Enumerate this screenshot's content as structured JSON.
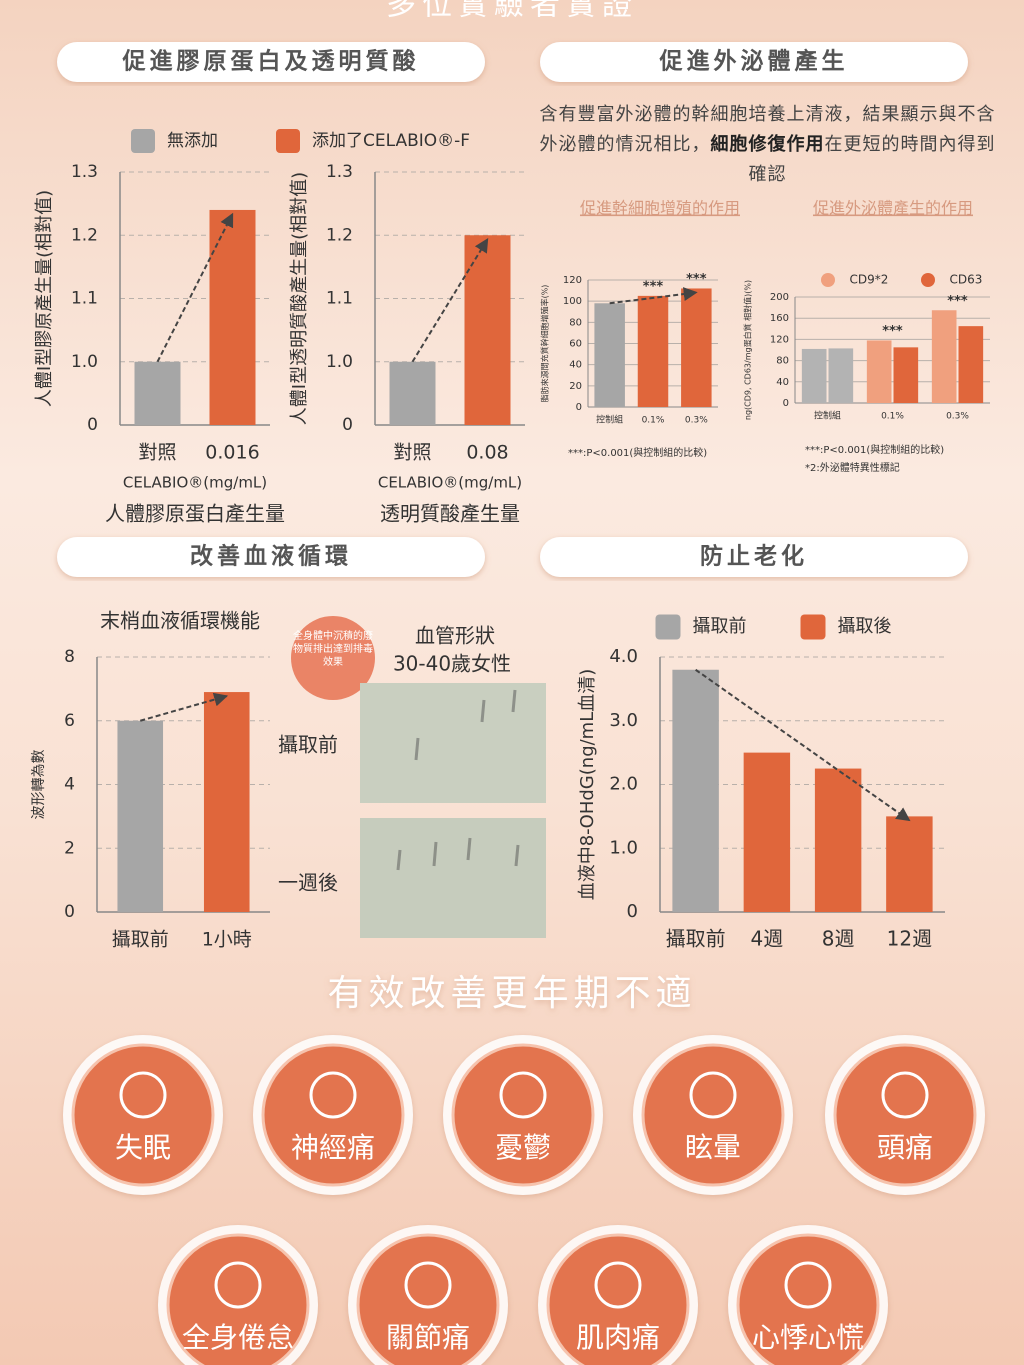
{
  "page": {
    "title": "多位實驗者實證",
    "sections": [
      "促進膠原蛋白及透明質酸",
      "促進外泌體產生",
      "改善血液循環",
      "防止老化"
    ],
    "exosome_text": {
      "before": "含有豐富外泌體的幹細胞培養上清液，結果顯示與不含外泌體的情況相比，",
      "bold": "細胞修復作用",
      "after": "在更短的時間內得到確認"
    },
    "badge": "全身體中沉積的廢物質排出達到排毒效果",
    "vessel": {
      "title": "血管形狀",
      "subtitle": "30-40歲女性",
      "before": "攝取前",
      "after": "一週後"
    },
    "menopause": {
      "title": "有效改善更年期不適",
      "symptoms": [
        "失眠",
        "神經痛",
        "憂鬱",
        "眩暈",
        "頭痛",
        "全身倦怠",
        "關節痛",
        "肌肉痛",
        "心悸心慌"
      ]
    }
  },
  "chart_data": [
    {
      "type": "bar",
      "ylabel": "人體I型膠原產生量(相對值)",
      "xlabel": "CELABIO®(mg/mL)",
      "caption": "人體膠原蛋白產生量",
      "categories": [
        "對照",
        "0.016"
      ],
      "series": [
        {
          "name": "無添加",
          "color": "#a6a6a6",
          "values": [
            1.0,
            null
          ]
        },
        {
          "name": "添加了CELABIO®-F",
          "color": "#e0663b",
          "values": [
            null,
            1.24
          ]
        }
      ],
      "ylim": [
        0,
        1.3
      ],
      "yticks": [
        0,
        {
          "value": 1,
          "label": "1.0"
        },
        1.1,
        1.2,
        1.3
      ],
      "broken_axis": true,
      "grid": true,
      "trend_arrow": true
    },
    {
      "type": "bar",
      "ylabel": "人體I型透明質酸產生量(相對值)",
      "xlabel": "CELABIO®(mg/mL)",
      "caption": "透明質酸產生量",
      "categories": [
        "對照",
        "0.08"
      ],
      "series": [
        {
          "color": "#a6a6a6",
          "values": [
            1.0,
            null
          ]
        },
        {
          "color": "#e0663b",
          "values": [
            null,
            1.2
          ]
        }
      ],
      "ylim": [
        0,
        1.3
      ],
      "yticks": [
        0,
        {
          "value": 1,
          "label": "1.0"
        },
        1.1,
        1.2,
        1.3
      ],
      "broken_axis": true,
      "grid": true,
      "trend_arrow": true
    },
    {
      "type": "bar",
      "title": "促進幹細胞增殖的作用",
      "ylabel": "脂肪來源間充質幹細胞增殖率(%)",
      "categories": [
        "控制組",
        "0.1%",
        "0.3%"
      ],
      "series": [
        {
          "color": "#e0663b",
          "values": [
            98,
            105,
            112
          ]
        }
      ],
      "control_color": "#a6a6a6",
      "ylim": [
        0,
        120
      ],
      "yticks": [
        0,
        20,
        40,
        60,
        80,
        100,
        120
      ],
      "grid": true,
      "trend_arrow": true,
      "annotations": [
        {
          "text": "***",
          "category": "0.1%"
        },
        {
          "text": "***",
          "category": "0.3%"
        }
      ],
      "notes": [
        "***:P<0.001(與控制組的比較)"
      ]
    },
    {
      "type": "bar",
      "title": "促進外泌體產生的作用",
      "ylabel": "ng(CD9, CD63/mg蛋白質 相對值)(%)",
      "categories": [
        "控制組",
        "0.1%",
        "0.3%"
      ],
      "series": [
        {
          "name": "CD9*2",
          "color": "#f0a07e",
          "values": [
            102,
            118,
            175
          ]
        },
        {
          "name": "CD63",
          "color": "#e0663b",
          "values": [
            103,
            105,
            145
          ]
        }
      ],
      "control_color": "#b3b3b3",
      "ylim": [
        0,
        200
      ],
      "yticks": [
        0,
        40,
        80,
        120,
        160,
        200
      ],
      "grid": true,
      "annotations": [
        {
          "text": "***",
          "category": "0.1%"
        },
        {
          "text": "***",
          "category": "0.3%"
        }
      ],
      "notes": [
        "***:P<0.001(與控制組的比較)",
        "*2:外泌體特異性標記"
      ]
    },
    {
      "type": "bar",
      "title": "末梢血液循環機能",
      "ylabel": "波形轉為數",
      "categories": [
        "攝取前",
        "1小時"
      ],
      "series": [
        {
          "color": "#a6a6a6",
          "values": [
            6.0,
            null
          ]
        },
        {
          "color": "#e0663b",
          "values": [
            null,
            6.9
          ]
        }
      ],
      "ylim": [
        0,
        8
      ],
      "yticks": [
        0,
        2,
        4,
        6,
        8
      ],
      "grid": true,
      "trend_arrow": true
    },
    {
      "type": "bar",
      "ylabel": "血液中8-OHdG(ng/mL血清)",
      "categories": [
        "攝取前",
        "4週",
        "8週",
        "12週"
      ],
      "series": [
        {
          "name": "攝取前",
          "color": "#a6a6a6",
          "values": [
            3.8,
            null,
            null,
            null
          ]
        },
        {
          "name": "攝取後",
          "color": "#e0663b",
          "values": [
            null,
            2.5,
            2.25,
            1.5
          ]
        }
      ],
      "ylim": [
        0,
        4
      ],
      "yticks": [
        0,
        {
          "value": 1,
          "label": "1.0"
        },
        {
          "value": 2,
          "label": "2.0"
        },
        {
          "value": 3,
          "label": "3.0"
        },
        {
          "value": 4,
          "label": "4.0"
        }
      ],
      "grid": true,
      "trend_arrow": true
    }
  ]
}
